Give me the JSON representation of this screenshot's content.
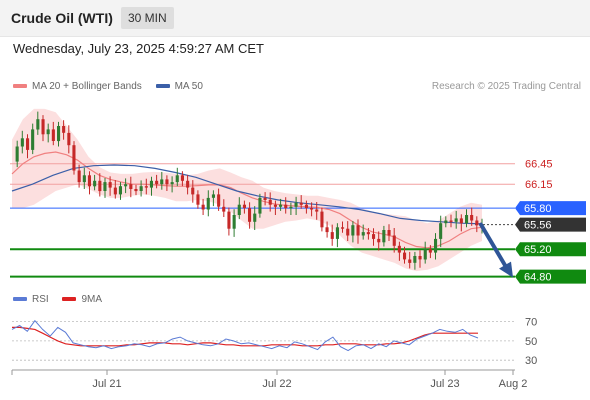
{
  "header": {
    "title": "Crude Oil (WTI)",
    "timeframe": "30 MIN"
  },
  "datetime": "Wednesday, July 23, 2025 4:59:27 AM CET",
  "legend": {
    "ma20_label": "MA 20 + Bollinger Bands",
    "ma50_label": "MA 50",
    "rsi_label": "RSI",
    "rsi_ma_label": "9MA"
  },
  "credit": "Research © 2025 Trading Central",
  "colors": {
    "ma20": "#f08080",
    "band": "#fbd9d9",
    "ma50": "#3b5fa8",
    "up": "#2e7d32",
    "down": "#c62828",
    "resistance": "#cc2222",
    "blue_level": "#2962ff",
    "green_level": "#108a10",
    "rsi": "#5b7bd5",
    "rsi_ma": "#dd2222"
  },
  "chart_data": {
    "type": "candlestick",
    "x_ticks": [
      "Jul 21",
      "Jul 22",
      "Jul 23",
      "Aug 2"
    ],
    "y_range": [
      64.75,
      67.38
    ],
    "levels": [
      {
        "value": 66.45,
        "label": "66.45",
        "style": "resistance"
      },
      {
        "value": 66.15,
        "label": "66.15",
        "style": "resistance"
      },
      {
        "value": 65.8,
        "label": "65.80",
        "style": "blue"
      },
      {
        "value": 65.56,
        "label": "65.56",
        "style": "current"
      },
      {
        "value": 65.2,
        "label": "65.20",
        "style": "support"
      },
      {
        "value": 64.8,
        "label": "64.80",
        "style": "support"
      }
    ],
    "price_path": [
      66.48,
      66.7,
      66.82,
      66.65,
      66.95,
      67.1,
      66.88,
      66.95,
      66.78,
      67.0,
      66.9,
      66.72,
      66.35,
      66.18,
      66.28,
      66.12,
      66.2,
      66.05,
      66.18,
      66.1,
      66.0,
      66.12,
      66.15,
      66.08,
      66.05,
      66.12,
      66.1,
      66.2,
      66.15,
      66.22,
      66.15,
      66.18,
      66.28,
      66.2,
      66.1,
      66.0,
      65.85,
      65.78,
      65.95,
      66.0,
      65.82,
      65.75,
      65.5,
      65.7,
      65.85,
      65.8,
      65.6,
      65.72,
      65.95,
      65.92,
      65.85,
      65.82,
      65.85,
      65.8,
      65.82,
      65.88,
      65.85,
      65.8,
      65.78,
      65.75,
      65.52,
      65.45,
      65.35,
      65.52,
      65.5,
      65.4,
      65.55,
      65.4,
      65.45,
      65.42,
      65.35,
      65.3,
      65.48,
      65.4,
      65.25,
      65.15,
      65.05,
      65.0,
      65.1,
      65.05,
      65.2,
      65.15,
      65.35,
      65.58,
      65.62,
      65.6,
      65.65,
      65.58,
      65.7,
      65.62,
      65.55,
      65.56
    ],
    "ma20_path": [
      66.3,
      66.45,
      66.55,
      66.6,
      66.62,
      66.58,
      66.5,
      66.38,
      66.28,
      66.22,
      66.18,
      66.15,
      66.15,
      66.14,
      66.13,
      66.12,
      66.12,
      66.13,
      66.14,
      66.14,
      66.1,
      66.02,
      65.95,
      65.9,
      65.86,
      65.84,
      65.83,
      65.82,
      65.81,
      65.78,
      65.72,
      65.62,
      65.52,
      65.45,
      65.42,
      65.38,
      65.3,
      65.24,
      65.22,
      65.25,
      65.32,
      65.42,
      65.5,
      65.52
    ],
    "band_upper": [
      66.8,
      67.1,
      67.25,
      67.25,
      67.2,
      67.0,
      66.8,
      66.55,
      66.4,
      66.32,
      66.3,
      66.3,
      66.32,
      66.33,
      66.32,
      66.3,
      66.28,
      66.3,
      66.35,
      66.38,
      66.32,
      66.25,
      66.2,
      66.1,
      66.05,
      66.02,
      66.0,
      65.98,
      65.98,
      65.95,
      65.92,
      65.88,
      65.8,
      65.75,
      65.72,
      65.7,
      65.68,
      65.62,
      65.58,
      65.62,
      65.72,
      65.82,
      65.88,
      65.85
    ],
    "band_lower": [
      65.8,
      65.8,
      65.85,
      65.95,
      66.05,
      66.1,
      66.15,
      66.08,
      66.0,
      65.95,
      65.95,
      65.98,
      66.0,
      65.98,
      65.95,
      65.9,
      65.9,
      65.92,
      65.9,
      65.85,
      65.75,
      65.62,
      65.5,
      65.5,
      65.55,
      65.6,
      65.62,
      65.65,
      65.62,
      65.55,
      65.4,
      65.25,
      65.15,
      65.1,
      65.05,
      65.0,
      64.92,
      64.88,
      64.9,
      64.95,
      65.05,
      65.15,
      65.25,
      65.32
    ],
    "ma50_path": [
      66.05,
      66.15,
      66.28,
      66.38,
      66.42,
      66.43,
      66.42,
      66.38,
      66.32,
      66.25,
      66.15,
      66.05,
      65.98,
      65.92,
      65.88,
      65.85,
      65.82,
      65.78,
      65.72,
      65.65,
      65.62,
      65.6,
      65.58,
      65.57
    ],
    "forecast": {
      "from": 65.56,
      "to": 64.8
    },
    "rsi": {
      "y_ticks": [
        70,
        50,
        30
      ],
      "y_range": [
        24,
        80
      ],
      "rsi_path": [
        62,
        66,
        60,
        71,
        62,
        55,
        64,
        59,
        48,
        46,
        44,
        43,
        45,
        42,
        44,
        45,
        47,
        46,
        44,
        47,
        48,
        52,
        54,
        50,
        48,
        46,
        45,
        47,
        52,
        50,
        47,
        48,
        46,
        44,
        42,
        45,
        43,
        49,
        47,
        44,
        41,
        49,
        54,
        44,
        40,
        45,
        46,
        42,
        47,
        44,
        50,
        48,
        46,
        52,
        55,
        58,
        62,
        60,
        59,
        62,
        56,
        53
      ],
      "ma_path": [
        64,
        64,
        63,
        62,
        58,
        54,
        50,
        47,
        46,
        45,
        45,
        45,
        45,
        45,
        45,
        46,
        46,
        47,
        48,
        48,
        48,
        47,
        47,
        46,
        47,
        48,
        48,
        47,
        46,
        46,
        45,
        45,
        45,
        45,
        46,
        46,
        46,
        46,
        45,
        45,
        45,
        46,
        46,
        47,
        47,
        47,
        46,
        46,
        46,
        47,
        47,
        48,
        50,
        53,
        56,
        58,
        58,
        58,
        58,
        58,
        58,
        58
      ]
    }
  }
}
